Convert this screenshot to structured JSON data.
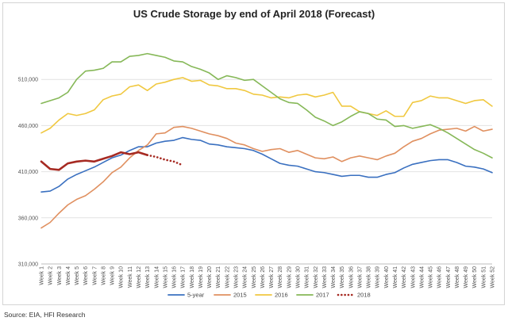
{
  "chart_data": {
    "type": "line",
    "title": "US Crude Storage by end of April 2018 (Forecast)",
    "source": "Source: EIA, HFI Research",
    "xlabel": "",
    "ylabel": "",
    "ylim": [
      310000,
      560000
    ],
    "y_ticks": [
      310000,
      360000,
      410000,
      460000,
      510000
    ],
    "y_tick_labels": [
      "310,000",
      "360,000",
      "410,000",
      "460,000",
      "510,000"
    ],
    "grid": "horizontal",
    "legend_position": "bottom",
    "categories": [
      "Week 1",
      "Week 2",
      "Week 3",
      "Week 4",
      "Week 5",
      "Week 6",
      "Week 7",
      "Week 8",
      "Week 9",
      "Week 10",
      "Week 11",
      "Week 12",
      "Week 13",
      "Week 14",
      "Week 15",
      "Week 16",
      "Week 17",
      "Week 18",
      "Week 19",
      "Week 20",
      "Week 21",
      "Week 22",
      "Week 23",
      "Week 24",
      "Week 25",
      "Week 26",
      "Week 27",
      "Week 28",
      "Week 29",
      "Week 30",
      "Week 31",
      "Week 32",
      "Week 33",
      "Week 34",
      "Week 35",
      "Week 36",
      "Week 37",
      "Week 38",
      "Week 39",
      "Week 40",
      "Week 41",
      "Week 42",
      "Week 43",
      "Week 44",
      "Week 45",
      "Week 46",
      "Week 47",
      "Week 48",
      "Week 49",
      "Week 50",
      "Week 51",
      "Week 52"
    ],
    "series": [
      {
        "name": "5-year",
        "color": "#3a70c0",
        "style": "solid",
        "values": [
          388000,
          389000,
          394000,
          402000,
          407000,
          411000,
          415000,
          420000,
          425000,
          428000,
          433000,
          437000,
          437000,
          441000,
          443000,
          444000,
          447000,
          445000,
          444000,
          440000,
          439000,
          437000,
          436000,
          435000,
          433000,
          429000,
          424000,
          419000,
          417000,
          416000,
          413000,
          410000,
          409000,
          407000,
          405000,
          406000,
          406000,
          404000,
          404000,
          407000,
          409000,
          414000,
          418000,
          420000,
          422000,
          423000,
          423000,
          420000,
          416000,
          415000,
          413000,
          409000
        ]
      },
      {
        "name": "2015",
        "color": "#e09060",
        "style": "solid",
        "values": [
          349000,
          355000,
          365000,
          374000,
          380000,
          384000,
          391000,
          399000,
          409000,
          415000,
          425000,
          433000,
          439000,
          451000,
          452000,
          458000,
          459000,
          457000,
          454000,
          451000,
          449000,
          446000,
          441000,
          439000,
          435000,
          432000,
          434000,
          435000,
          431000,
          433000,
          429000,
          425000,
          424000,
          426000,
          421000,
          425000,
          427000,
          425000,
          423000,
          427000,
          430000,
          437000,
          443000,
          446000,
          451000,
          455000,
          456000,
          457000,
          454000,
          459000,
          454000,
          456000
        ]
      },
      {
        "name": "2016",
        "color": "#f0c840",
        "style": "solid",
        "values": [
          452000,
          457000,
          466000,
          473000,
          471000,
          473000,
          477000,
          488000,
          492000,
          494000,
          502000,
          504000,
          498000,
          505000,
          507000,
          510000,
          512000,
          508000,
          509000,
          504000,
          503000,
          500000,
          500000,
          498000,
          494000,
          493000,
          490000,
          491000,
          490000,
          493000,
          494000,
          491000,
          493000,
          496000,
          481000,
          481000,
          475000,
          473000,
          471000,
          476000,
          470000,
          470000,
          485000,
          487000,
          492000,
          490000,
          490000,
          487000,
          484000,
          487000,
          488000,
          481000
        ]
      },
      {
        "name": "2017",
        "color": "#86b858",
        "style": "solid",
        "values": [
          484000,
          487000,
          490000,
          496000,
          510000,
          519000,
          520000,
          522000,
          529000,
          529000,
          535000,
          536000,
          538000,
          536000,
          534000,
          530000,
          529000,
          524000,
          521000,
          517000,
          510000,
          514000,
          512000,
          509000,
          510000,
          503000,
          496000,
          489000,
          485000,
          484000,
          477000,
          469000,
          465000,
          460000,
          464000,
          470000,
          475000,
          473000,
          467000,
          466000,
          459000,
          460000,
          457000,
          459000,
          461000,
          457000,
          452000,
          446000,
          440000,
          434000,
          430000,
          425000
        ]
      },
      {
        "name": "2018",
        "color": "#a62a22",
        "style": "solid",
        "values": [
          421000,
          413000,
          412000,
          419000,
          421000,
          422000,
          421000,
          424000,
          427000,
          431000,
          429000,
          431000,
          428000,
          null,
          null,
          null,
          null,
          null,
          null,
          null,
          null,
          null,
          null,
          null,
          null,
          null,
          null,
          null,
          null,
          null,
          null,
          null,
          null,
          null,
          null,
          null,
          null,
          null,
          null,
          null,
          null,
          null,
          null,
          null,
          null,
          null,
          null,
          null,
          null,
          null,
          null,
          null
        ]
      },
      {
        "name": "",
        "color": "#a62a22",
        "style": "dotted",
        "values": [
          null,
          null,
          null,
          null,
          null,
          null,
          null,
          null,
          null,
          null,
          null,
          null,
          428000,
          426000,
          423000,
          421000,
          417000,
          null,
          null,
          null,
          null,
          null,
          null,
          null,
          null,
          null,
          null,
          null,
          null,
          null,
          null,
          null,
          null,
          null,
          null,
          null,
          null,
          null,
          null,
          null,
          null,
          null,
          null,
          null,
          null,
          null,
          null,
          null,
          null,
          null,
          null,
          null
        ]
      }
    ],
    "legend": [
      {
        "label": "5-year",
        "color": "#3a70c0",
        "style": "solid"
      },
      {
        "label": "2015",
        "color": "#e09060",
        "style": "solid"
      },
      {
        "label": "2016",
        "color": "#f0c840",
        "style": "solid"
      },
      {
        "label": "2017",
        "color": "#86b858",
        "style": "solid"
      },
      {
        "label": "2018",
        "color": "#a62a22",
        "style": "dotted"
      }
    ]
  }
}
